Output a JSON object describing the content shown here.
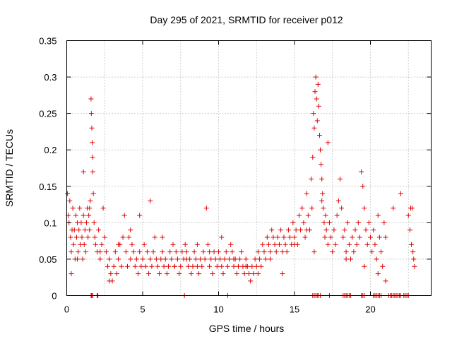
{
  "chart_data": {
    "type": "scatter",
    "title": "Day 295 of 2021, SRMTID for receiver p012",
    "xlabel": "GPS time / hours",
    "ylabel": "SRMTID / TECUs",
    "xlim": [
      0,
      24
    ],
    "ylim": [
      0,
      0.35
    ],
    "xticks": [
      0,
      5,
      10,
      15,
      20
    ],
    "yticks": [
      0,
      0.05,
      0.1,
      0.15,
      0.2,
      0.25,
      0.3,
      0.35
    ],
    "xtick_labels": [
      "0",
      "5",
      "10",
      "15",
      "20"
    ],
    "ytick_labels": [
      "0",
      "0.05",
      "0.1",
      "0.15",
      "0.2",
      "0.25",
      "0.3",
      "0.35"
    ],
    "grid": true,
    "marker": "+",
    "color": "#e00000",
    "series": [
      {
        "name": "SRMTID",
        "x": [
          0.05,
          0.1,
          0.15,
          0.2,
          0.25,
          0.3,
          0.35,
          0.4,
          0.45,
          0.5,
          0.55,
          0.6,
          0.65,
          0.7,
          0.75,
          0.8,
          0.85,
          0.9,
          0.95,
          1.0,
          1.05,
          1.1,
          1.15,
          1.2,
          1.25,
          1.3,
          1.35,
          1.4,
          1.45,
          1.5,
          1.55,
          1.6,
          1.62,
          1.65,
          1.68,
          1.7,
          1.72,
          1.75,
          1.8,
          1.85,
          1.9,
          2.0,
          2.1,
          2.2,
          2.3,
          2.4,
          2.5,
          2.6,
          2.7,
          2.8,
          2.9,
          3.0,
          3.1,
          3.2,
          3.3,
          3.4,
          3.5,
          3.6,
          3.7,
          3.8,
          3.9,
          4.0,
          4.1,
          4.2,
          4.3,
          4.4,
          4.5,
          4.6,
          4.7,
          4.8,
          4.9,
          5.0,
          5.1,
          5.2,
          5.3,
          5.4,
          5.5,
          5.6,
          5.7,
          5.8,
          5.9,
          6.0,
          6.1,
          6.2,
          6.3,
          6.4,
          6.5,
          6.6,
          6.7,
          6.8,
          6.9,
          7.0,
          7.1,
          7.2,
          7.3,
          7.4,
          7.5,
          7.6,
          7.7,
          7.8,
          7.9,
          8.0,
          8.1,
          8.2,
          8.3,
          8.4,
          8.5,
          8.6,
          8.7,
          8.8,
          8.9,
          9.0,
          9.1,
          9.2,
          9.3,
          9.4,
          9.5,
          9.6,
          9.7,
          9.8,
          9.9,
          10.0,
          10.1,
          10.2,
          10.3,
          10.4,
          10.5,
          10.6,
          10.7,
          10.8,
          10.9,
          11.0,
          11.1,
          11.2,
          11.3,
          11.4,
          11.5,
          11.6,
          11.7,
          11.8,
          11.9,
          12.0,
          12.1,
          12.2,
          12.3,
          12.4,
          12.5,
          12.6,
          12.7,
          12.8,
          12.9,
          13.0,
          13.1,
          13.2,
          13.3,
          13.4,
          13.5,
          13.6,
          13.7,
          13.8,
          13.9,
          14.0,
          14.1,
          14.2,
          14.3,
          14.4,
          14.5,
          14.6,
          14.7,
          14.8,
          14.9,
          15.0,
          15.1,
          15.2,
          15.3,
          15.4,
          15.5,
          15.6,
          15.7,
          15.8,
          15.9,
          16.0,
          16.1,
          16.15,
          16.2,
          16.25,
          16.3,
          16.35,
          16.4,
          16.45,
          16.5,
          16.55,
          16.6,
          16.65,
          16.7,
          16.75,
          16.8,
          16.85,
          16.9,
          16.95,
          17.0,
          17.05,
          17.1,
          17.2,
          17.3,
          17.4,
          17.5,
          17.6,
          17.7,
          17.8,
          17.9,
          18.0,
          18.1,
          18.2,
          18.3,
          18.4,
          18.5,
          18.6,
          18.7,
          18.8,
          18.9,
          19.0,
          19.1,
          19.2,
          19.3,
          19.4,
          19.5,
          19.6,
          19.7,
          19.8,
          19.9,
          20.0,
          20.1,
          20.2,
          20.3,
          20.4,
          20.5,
          20.6,
          20.7,
          20.8,
          20.9,
          21.0,
          21.5,
          22.0,
          22.5,
          22.6,
          22.65,
          22.7,
          22.75,
          22.8,
          22.85,
          22.9,
          0.3,
          0.7,
          1.1,
          1.5,
          2.2,
          2.8,
          3.4,
          4.2,
          4.8,
          5.5,
          6.3,
          7.1,
          7.9,
          8.6,
          9.4,
          10.2,
          11.0,
          11.8,
          12.6,
          13.4,
          14.2,
          15.0,
          15.8,
          16.3,
          16.8,
          17.2,
          18.4,
          19.6,
          20.5,
          21.0
        ],
        "y": [
          0.14,
          0.11,
          0.1,
          0.13,
          0.08,
          0.06,
          0.09,
          0.12,
          0.07,
          0.09,
          0.05,
          0.11,
          0.08,
          0.1,
          0.06,
          0.09,
          0.12,
          0.07,
          0.1,
          0.08,
          0.05,
          0.11,
          0.07,
          0.09,
          0.06,
          0.1,
          0.12,
          0.08,
          0.11,
          0.09,
          0.13,
          0.27,
          0.25,
          0.23,
          0.21,
          0.19,
          0.17,
          0.14,
          0.1,
          0.08,
          0.07,
          0.06,
          0.09,
          0.05,
          0.07,
          0.12,
          0.08,
          0.06,
          0.04,
          0.05,
          0.03,
          0.02,
          0.04,
          0.06,
          0.03,
          0.05,
          0.07,
          0.04,
          0.08,
          0.11,
          0.06,
          0.04,
          0.08,
          0.05,
          0.07,
          0.06,
          0.04,
          0.05,
          0.03,
          0.06,
          0.04,
          0.05,
          0.07,
          0.04,
          0.06,
          0.03,
          0.05,
          0.04,
          0.06,
          0.08,
          0.05,
          0.04,
          0.03,
          0.05,
          0.06,
          0.04,
          0.05,
          0.03,
          0.04,
          0.06,
          0.05,
          0.07,
          0.04,
          0.06,
          0.05,
          0.03,
          0.04,
          0.06,
          0.05,
          0.07,
          0.06,
          0.04,
          0.05,
          0.03,
          0.04,
          0.06,
          0.05,
          0.04,
          0.03,
          0.05,
          0.04,
          0.06,
          0.05,
          0.12,
          0.07,
          0.04,
          0.05,
          0.03,
          0.06,
          0.05,
          0.04,
          0.06,
          0.05,
          0.04,
          0.03,
          0.05,
          0.06,
          0.04,
          0.05,
          0.07,
          0.06,
          0.04,
          0.05,
          0.03,
          0.04,
          0.05,
          0.06,
          0.04,
          0.03,
          0.05,
          0.04,
          0.03,
          0.02,
          0.04,
          0.03,
          0.05,
          0.04,
          0.03,
          0.05,
          0.04,
          0.07,
          0.06,
          0.05,
          0.08,
          0.07,
          0.06,
          0.09,
          0.08,
          0.07,
          0.06,
          0.08,
          0.07,
          0.09,
          0.06,
          0.08,
          0.07,
          0.06,
          0.09,
          0.08,
          0.07,
          0.1,
          0.08,
          0.09,
          0.07,
          0.11,
          0.09,
          0.12,
          0.1,
          0.08,
          0.14,
          0.11,
          0.09,
          0.16,
          0.12,
          0.19,
          0.25,
          0.23,
          0.28,
          0.3,
          0.27,
          0.24,
          0.29,
          0.26,
          0.22,
          0.2,
          0.18,
          0.16,
          0.14,
          0.12,
          0.1,
          0.08,
          0.11,
          0.09,
          0.07,
          0.1,
          0.08,
          0.06,
          0.09,
          0.07,
          0.11,
          0.13,
          0.16,
          0.12,
          0.08,
          0.09,
          0.06,
          0.1,
          0.07,
          0.05,
          0.08,
          0.06,
          0.09,
          0.07,
          0.1,
          0.08,
          0.17,
          0.15,
          0.12,
          0.09,
          0.07,
          0.1,
          0.08,
          0.06,
          0.09,
          0.07,
          0.05,
          0.11,
          0.08,
          0.06,
          0.04,
          0.1,
          0.08,
          0.12,
          0.14,
          0.11,
          0.09,
          0.12,
          0.07,
          0.12,
          0.06,
          0.05,
          0.04,
          0.03,
          0.05,
          0.17,
          0.12,
          0.06,
          0.02,
          0.07,
          0.09,
          0.11,
          0.13,
          0.08,
          0.04,
          0.05,
          0.07,
          0.06,
          0.08,
          0.05,
          0.04,
          0.06,
          0.05,
          0.03,
          0.07,
          0.09,
          0.06,
          0.13,
          0.21,
          0.05,
          0.04,
          0.03,
          0.02
        ]
      }
    ],
    "baseline_markers": {
      "name": "zero-value data points",
      "x": [
        1.6,
        1.65,
        1.7,
        2.0,
        2.05,
        7.75,
        10.6,
        16.2,
        16.3,
        16.4,
        16.5,
        16.6,
        16.7,
        17.3,
        18.2,
        18.3,
        18.4,
        18.5,
        18.6,
        18.7,
        19.4,
        19.5,
        19.6,
        20.2,
        20.3,
        20.4,
        20.5,
        20.6,
        20.7,
        21.2,
        21.3,
        21.4,
        21.5,
        21.6,
        21.7,
        21.8,
        21.9,
        22.0,
        22.2,
        22.3,
        22.4,
        22.5
      ]
    }
  }
}
